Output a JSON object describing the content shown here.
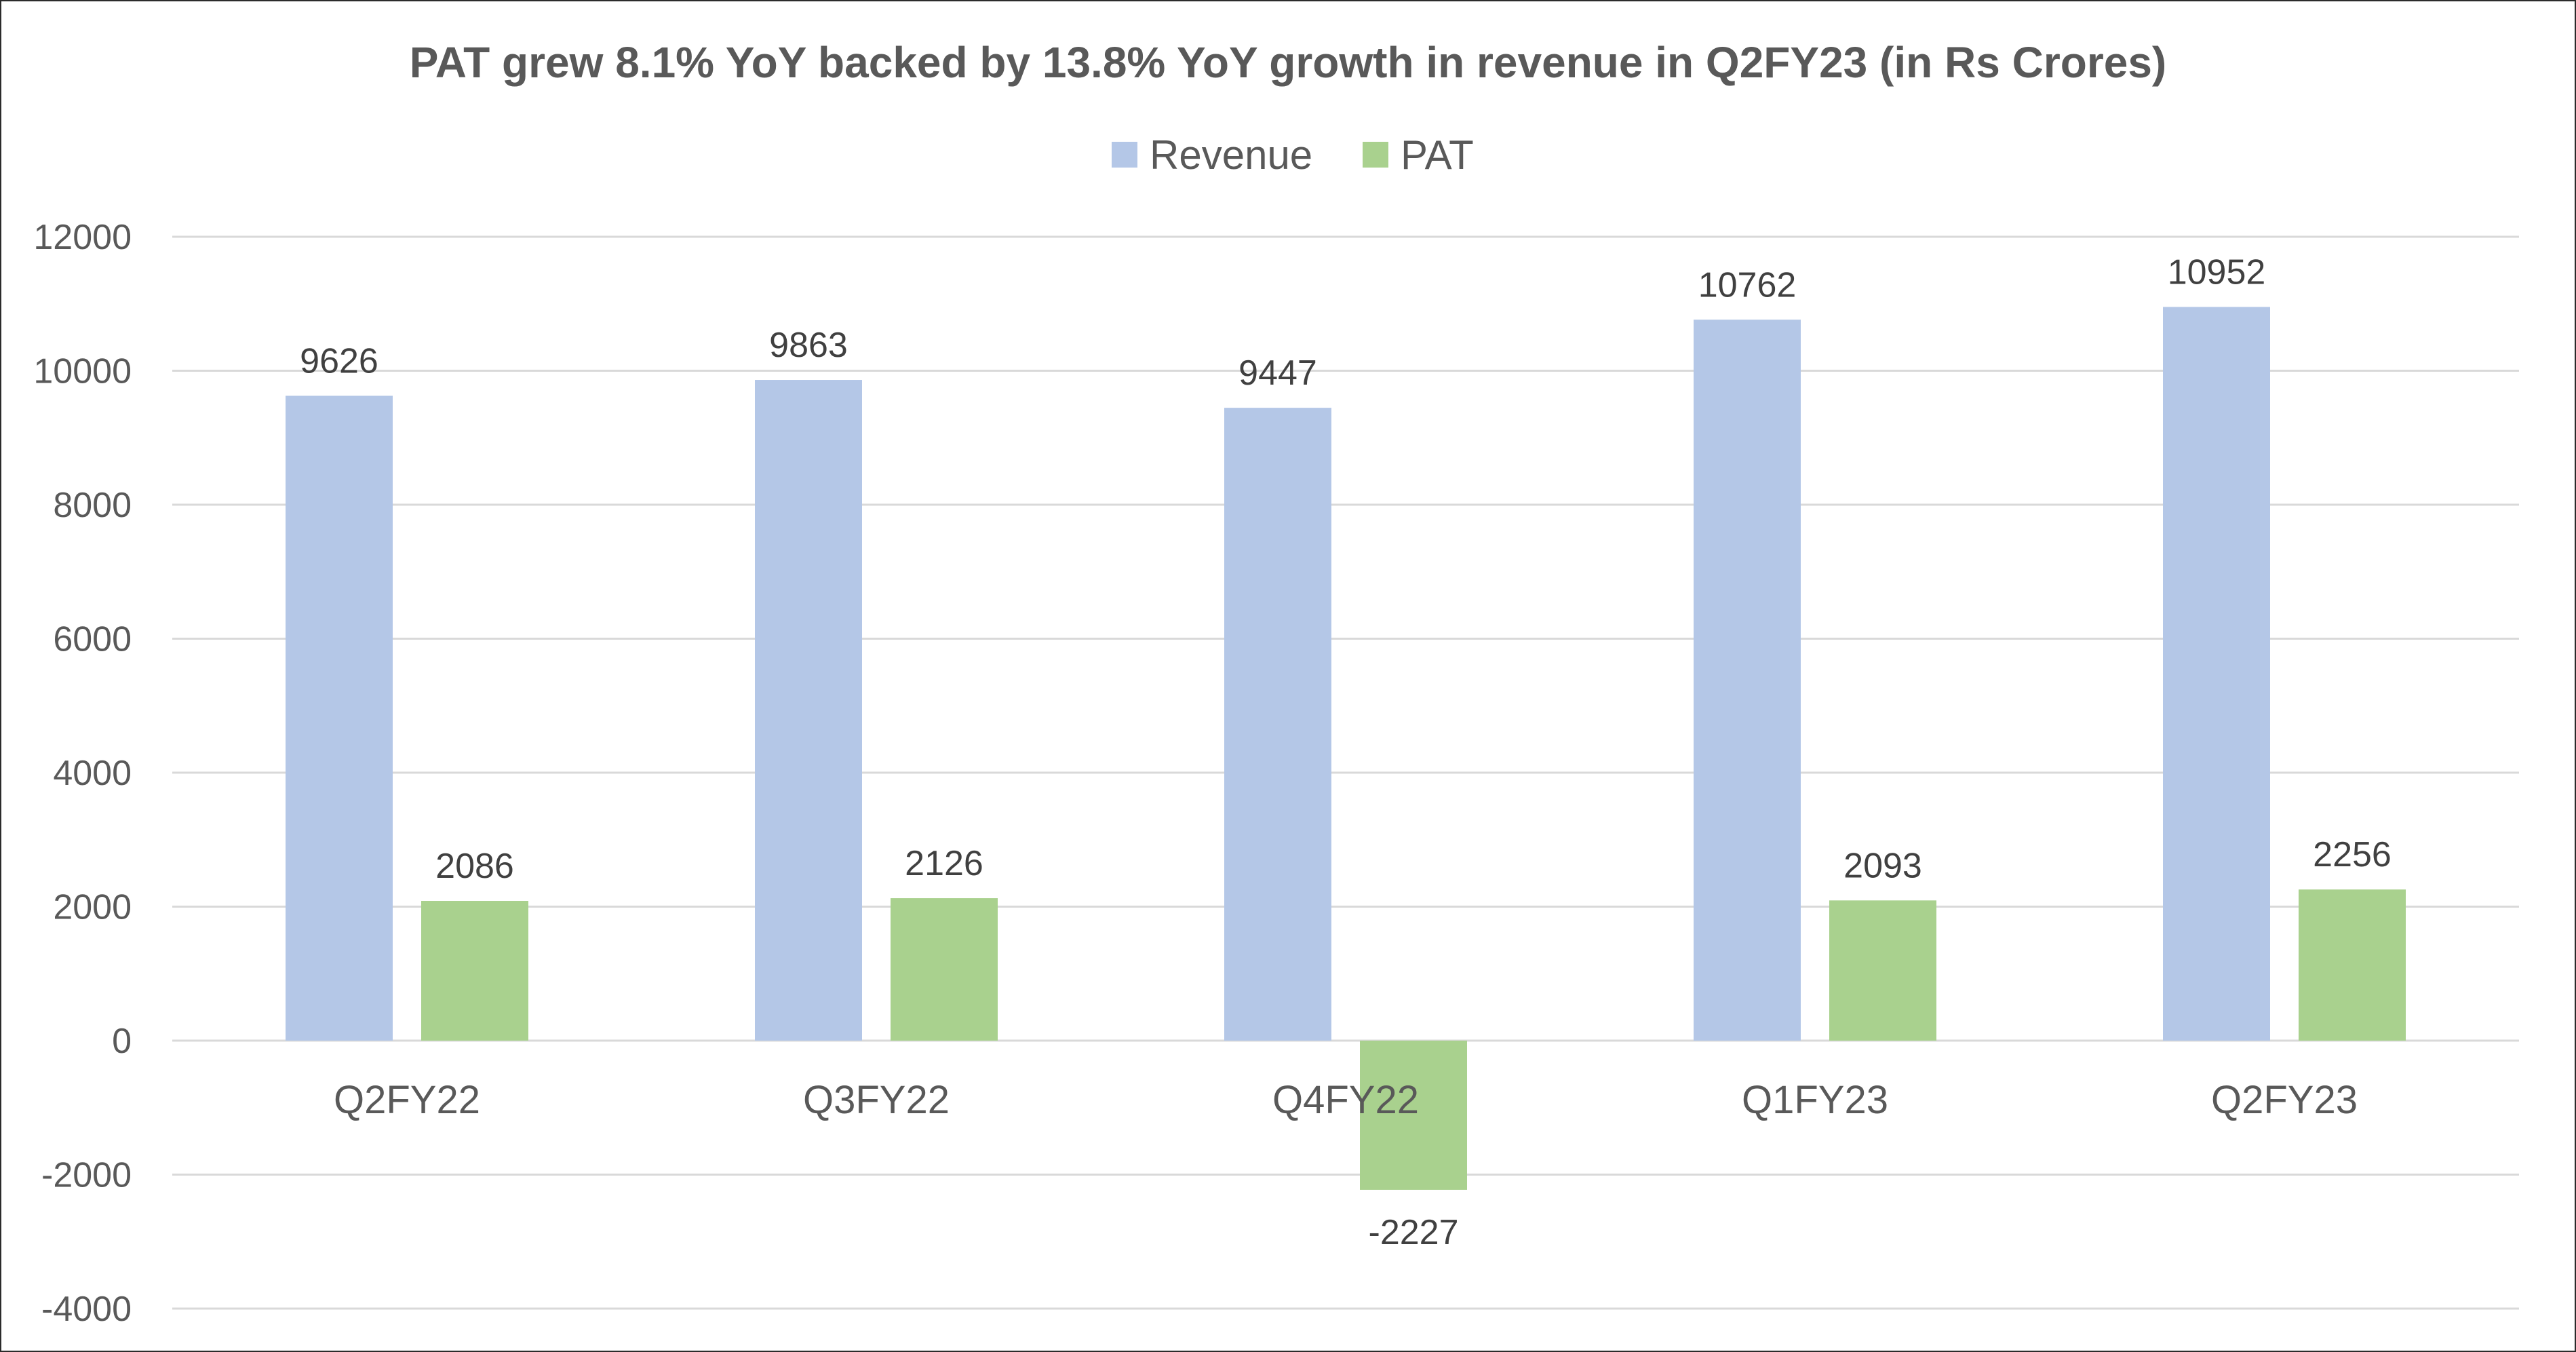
{
  "chart_data": {
    "type": "bar",
    "title": "PAT grew 8.1% YoY backed by 13.8% YoY growth in revenue in Q2FY23 (in Rs Crores)",
    "categories": [
      "Q2FY22",
      "Q3FY22",
      "Q4FY22",
      "Q1FY23",
      "Q2FY23"
    ],
    "series": [
      {
        "name": "Revenue",
        "color": "#b4c7e7",
        "values": [
          9626,
          9863,
          9447,
          10762,
          10952
        ]
      },
      {
        "name": "PAT",
        "color": "#a9d18e",
        "values": [
          2086,
          2126,
          -2227,
          2093,
          2256
        ]
      }
    ],
    "ylim": [
      -4000,
      12000
    ],
    "yticks": [
      12000,
      10000,
      8000,
      6000,
      4000,
      2000,
      0,
      -2000,
      -4000
    ],
    "grid": true,
    "legend_position": "top-center",
    "data_labels": true
  }
}
